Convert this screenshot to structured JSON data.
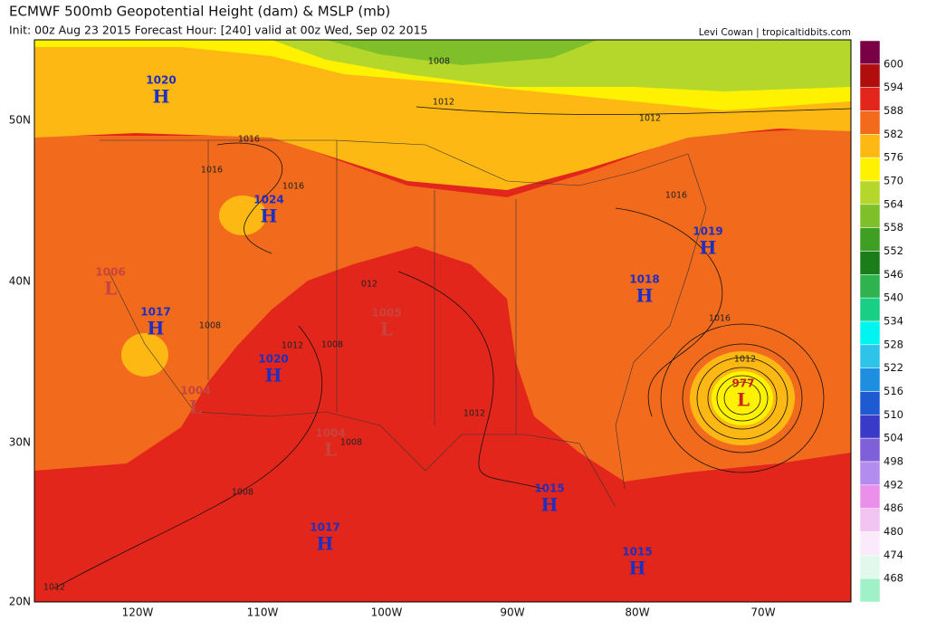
{
  "header": {
    "title": "ECMWF 500mb Geopotential Height (dam) & MSLP (mb)",
    "subtitle": "Init: 00z Aug 23 2015   Forecast Hour: [240]   valid at 00z Wed, Sep 02 2015",
    "credit": "Levi Cowan | tropicaltidbits.com"
  },
  "colorbar": {
    "labels": [
      "600",
      "594",
      "588",
      "582",
      "576",
      "570",
      "564",
      "558",
      "552",
      "546",
      "540",
      "534",
      "528",
      "522",
      "516",
      "510",
      "504",
      "498",
      "492",
      "486",
      "480",
      "474",
      "468"
    ],
    "colors": [
      "#7a0046",
      "#b00d0d",
      "#e3261b",
      "#f26b1d",
      "#fdb813",
      "#fff200",
      "#b5d62a",
      "#7fbf2a",
      "#3f9f23",
      "#1a7d1a",
      "#2fb34f",
      "#19cf86",
      "#00f5f0",
      "#2ec4ea",
      "#1e8fe0",
      "#1e5ad2",
      "#3a3ac8",
      "#8060d8",
      "#b48cf0",
      "#ea90ea",
      "#f2c4f2",
      "#fbeafb",
      "#e2f8ec",
      "#a0f0c8"
    ]
  },
  "axes": {
    "lon_labels": [
      "120W",
      "110W",
      "100W",
      "90W",
      "80W",
      "70W"
    ],
    "lat_labels": [
      "50N",
      "40N",
      "30N",
      "20N"
    ]
  },
  "centers": [
    {
      "pressure": "1020",
      "letter": "H"
    },
    {
      "pressure": "1024",
      "letter": "H"
    },
    {
      "pressure": "1019",
      "letter": "H"
    },
    {
      "pressure": "1018",
      "letter": "H"
    },
    {
      "pressure": "1017",
      "letter": "H"
    },
    {
      "pressure": "1020",
      "letter": "H"
    },
    {
      "pressure": "1015",
      "letter": "H"
    },
    {
      "pressure": "1017",
      "letter": "H"
    },
    {
      "pressure": "1015",
      "letter": "H"
    },
    {
      "pressure": "1006",
      "letter": "L"
    },
    {
      "pressure": "1005",
      "letter": "L"
    },
    {
      "pressure": "1004",
      "letter": "L"
    },
    {
      "pressure": "1004",
      "letter": "L"
    },
    {
      "pressure": "977",
      "letter": "L"
    }
  ],
  "isobar_labels": [
    "1008",
    "1012",
    "1012",
    "1016",
    "1016",
    "1016",
    "1016",
    "1016",
    "1012",
    "1012",
    "012",
    "1008",
    "1012",
    "1008",
    "1008",
    "1008",
    "1012"
  ]
}
